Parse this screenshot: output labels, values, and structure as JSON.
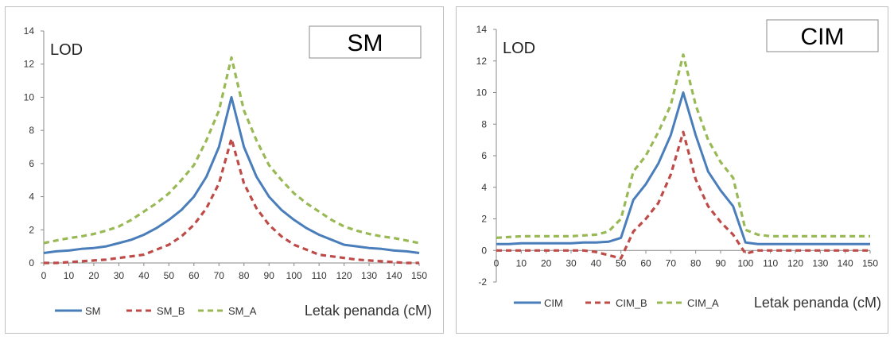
{
  "chart_data": [
    {
      "type": "line",
      "title": "SM",
      "ylabel": "LOD",
      "xlabel": "Letak penanda (cM)",
      "ylim": [
        0,
        14
      ],
      "yticks": [
        0,
        2,
        4,
        6,
        8,
        10,
        12,
        14
      ],
      "xlim": [
        0,
        150
      ],
      "xticks": [
        0,
        10,
        20,
        30,
        40,
        50,
        60,
        70,
        80,
        90,
        100,
        110,
        120,
        130,
        140,
        150
      ],
      "grid": false,
      "legend": "bottom",
      "series": [
        {
          "name": "SM",
          "color": "#4a7ebb",
          "dash": "solid",
          "x": [
            0,
            5,
            10,
            15,
            20,
            25,
            30,
            35,
            40,
            45,
            50,
            55,
            60,
            65,
            70,
            75,
            80,
            85,
            90,
            95,
            100,
            105,
            110,
            115,
            120,
            125,
            130,
            135,
            140,
            145,
            150
          ],
          "y": [
            0.6,
            0.7,
            0.75,
            0.85,
            0.9,
            1.0,
            1.2,
            1.4,
            1.7,
            2.1,
            2.6,
            3.2,
            4.0,
            5.2,
            7.0,
            10.0,
            7.0,
            5.2,
            4.0,
            3.2,
            2.6,
            2.1,
            1.7,
            1.4,
            1.1,
            1.0,
            0.9,
            0.85,
            0.75,
            0.7,
            0.6
          ]
        },
        {
          "name": "SM_B",
          "color": "#be4b48",
          "dash": "dashed",
          "x": [
            0,
            5,
            10,
            15,
            20,
            25,
            30,
            35,
            40,
            45,
            50,
            55,
            60,
            65,
            70,
            75,
            80,
            85,
            90,
            95,
            100,
            105,
            110,
            115,
            120,
            125,
            130,
            135,
            140,
            145,
            150
          ],
          "y": [
            0.0,
            0.0,
            0.05,
            0.1,
            0.15,
            0.2,
            0.3,
            0.4,
            0.5,
            0.8,
            1.1,
            1.6,
            2.3,
            3.3,
            4.8,
            7.5,
            4.8,
            3.3,
            2.3,
            1.6,
            1.1,
            0.8,
            0.5,
            0.4,
            0.3,
            0.2,
            0.15,
            0.1,
            0.05,
            0.0,
            0.0
          ]
        },
        {
          "name": "SM_A",
          "color": "#98b954",
          "dash": "dashed",
          "x": [
            0,
            5,
            10,
            15,
            20,
            25,
            30,
            35,
            40,
            45,
            50,
            55,
            60,
            65,
            70,
            75,
            80,
            85,
            90,
            95,
            100,
            105,
            110,
            115,
            120,
            125,
            130,
            135,
            140,
            145,
            150
          ],
          "y": [
            1.2,
            1.35,
            1.5,
            1.6,
            1.75,
            1.95,
            2.2,
            2.6,
            3.1,
            3.6,
            4.2,
            5.0,
            5.9,
            7.4,
            9.2,
            12.4,
            9.2,
            7.4,
            5.9,
            5.0,
            4.2,
            3.6,
            3.1,
            2.6,
            2.2,
            1.95,
            1.75,
            1.6,
            1.5,
            1.35,
            1.2
          ]
        }
      ]
    },
    {
      "type": "line",
      "title": "CIM",
      "ylabel": "LOD",
      "xlabel": "Letak penanda (cM)",
      "ylim": [
        -2,
        14
      ],
      "yticks": [
        -2,
        0,
        2,
        4,
        6,
        8,
        10,
        12,
        14
      ],
      "xlim": [
        0,
        150
      ],
      "xticks": [
        0,
        10,
        20,
        30,
        40,
        50,
        60,
        70,
        80,
        90,
        100,
        110,
        120,
        130,
        140,
        150
      ],
      "grid": false,
      "legend": "bottom",
      "series": [
        {
          "name": "CIM",
          "color": "#4a7ebb",
          "dash": "solid",
          "x": [
            0,
            5,
            10,
            15,
            20,
            25,
            30,
            35,
            40,
            45,
            50,
            55,
            60,
            65,
            70,
            75,
            80,
            85,
            90,
            95,
            100,
            105,
            110,
            115,
            120,
            125,
            130,
            135,
            140,
            145,
            150
          ],
          "y": [
            0.4,
            0.4,
            0.45,
            0.45,
            0.45,
            0.45,
            0.45,
            0.5,
            0.5,
            0.55,
            0.8,
            3.2,
            4.2,
            5.5,
            7.3,
            10.0,
            7.3,
            5.0,
            3.8,
            2.8,
            0.5,
            0.4,
            0.4,
            0.4,
            0.4,
            0.4,
            0.4,
            0.4,
            0.4,
            0.4,
            0.4
          ]
        },
        {
          "name": "CIM_B",
          "color": "#be4b48",
          "dash": "dashed",
          "x": [
            0,
            5,
            10,
            15,
            20,
            25,
            30,
            35,
            40,
            45,
            50,
            55,
            60,
            65,
            70,
            75,
            80,
            85,
            90,
            95,
            100,
            105,
            110,
            115,
            120,
            125,
            130,
            135,
            140,
            145,
            150
          ],
          "y": [
            0.0,
            0.0,
            0.0,
            0.0,
            0.0,
            0.0,
            0.0,
            0.0,
            -0.1,
            -0.3,
            -0.5,
            1.2,
            2.0,
            3.0,
            4.8,
            7.5,
            4.5,
            2.8,
            1.8,
            1.0,
            -0.2,
            0.0,
            0.0,
            0.0,
            0.0,
            0.0,
            0.0,
            0.0,
            0.0,
            0.0,
            0.0
          ]
        },
        {
          "name": "CIM_A",
          "color": "#98b954",
          "dash": "dashed",
          "x": [
            0,
            5,
            10,
            15,
            20,
            25,
            30,
            35,
            40,
            45,
            50,
            55,
            60,
            65,
            70,
            75,
            80,
            85,
            90,
            95,
            100,
            105,
            110,
            115,
            120,
            125,
            130,
            135,
            140,
            145,
            150
          ],
          "y": [
            0.8,
            0.85,
            0.9,
            0.9,
            0.9,
            0.9,
            0.9,
            0.95,
            1.0,
            1.2,
            2.0,
            5.0,
            6.0,
            7.5,
            9.2,
            12.4,
            9.2,
            7.0,
            5.6,
            4.6,
            1.3,
            1.0,
            0.9,
            0.9,
            0.9,
            0.9,
            0.9,
            0.9,
            0.9,
            0.9,
            0.9
          ]
        }
      ]
    }
  ]
}
